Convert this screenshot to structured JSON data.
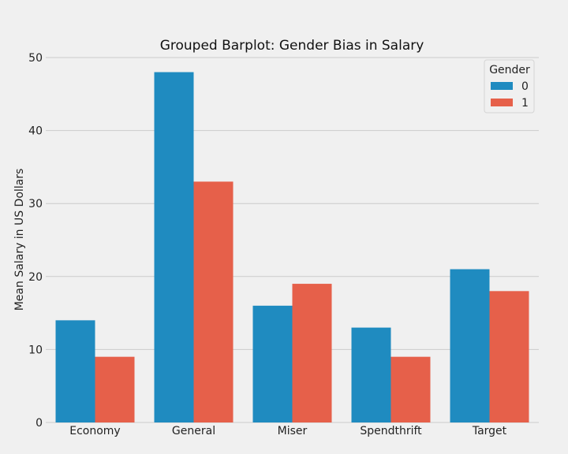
{
  "chart_data": {
    "type": "bar",
    "title": "Grouped Barplot: Gender Bias in Salary",
    "xlabel": "",
    "ylabel": "Mean Salary in US Dollars",
    "categories": [
      "Economy",
      "General",
      "Miser",
      "Spendthrift",
      "Target"
    ],
    "series": [
      {
        "name": "0",
        "values": [
          14,
          48,
          16,
          13,
          21
        ],
        "color": "#1f8bc0"
      },
      {
        "name": "1",
        "values": [
          9,
          33,
          19,
          9,
          18
        ],
        "color": "#e6604a"
      }
    ],
    "ylim": [
      0,
      50
    ],
    "yticks": [
      0,
      10,
      20,
      30,
      40,
      50
    ],
    "grid": true,
    "legend": {
      "title": "Gender",
      "placement": "top-right"
    },
    "background": "#f0f0f0",
    "grid_color": "#cbcbcb"
  }
}
